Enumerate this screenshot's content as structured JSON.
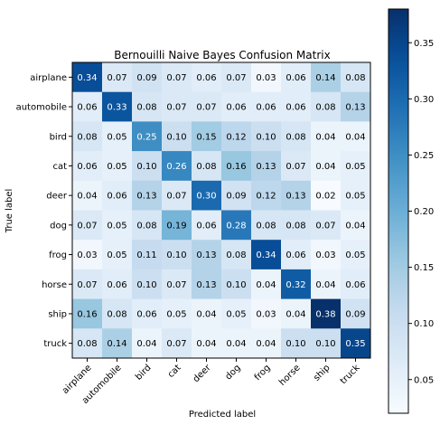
{
  "chart_data": {
    "type": "heatmap",
    "title": "Bernouilli Naive Bayes Confusion Matrix",
    "xlabel": "Predicted label",
    "ylabel": "True label",
    "x_categories": [
      "airplane",
      "automobile",
      "bird",
      "cat",
      "deer",
      "dog",
      "frog",
      "horse",
      "ship",
      "truck"
    ],
    "y_categories": [
      "airplane",
      "automobile",
      "bird",
      "cat",
      "deer",
      "dog",
      "frog",
      "horse",
      "ship",
      "truck"
    ],
    "values": [
      [
        0.34,
        0.07,
        0.09,
        0.07,
        0.06,
        0.07,
        0.03,
        0.06,
        0.14,
        0.08
      ],
      [
        0.06,
        0.33,
        0.08,
        0.07,
        0.07,
        0.06,
        0.06,
        0.06,
        0.08,
        0.13
      ],
      [
        0.08,
        0.05,
        0.25,
        0.1,
        0.15,
        0.12,
        0.1,
        0.08,
        0.04,
        0.04
      ],
      [
        0.06,
        0.05,
        0.1,
        0.26,
        0.08,
        0.16,
        0.13,
        0.07,
        0.04,
        0.05
      ],
      [
        0.04,
        0.06,
        0.13,
        0.07,
        0.3,
        0.09,
        0.12,
        0.13,
        0.02,
        0.05
      ],
      [
        0.07,
        0.05,
        0.08,
        0.19,
        0.06,
        0.28,
        0.08,
        0.08,
        0.07,
        0.04
      ],
      [
        0.03,
        0.05,
        0.11,
        0.1,
        0.13,
        0.08,
        0.34,
        0.06,
        0.03,
        0.05
      ],
      [
        0.07,
        0.06,
        0.1,
        0.07,
        0.13,
        0.1,
        0.04,
        0.32,
        0.04,
        0.06
      ],
      [
        0.16,
        0.08,
        0.06,
        0.05,
        0.04,
        0.05,
        0.03,
        0.04,
        0.38,
        0.09
      ],
      [
        0.08,
        0.14,
        0.04,
        0.07,
        0.04,
        0.04,
        0.04,
        0.1,
        0.1,
        0.35
      ]
    ],
    "colormap": "Blues",
    "color_range": [
      0.02,
      0.38
    ],
    "colorbar_ticks": [
      "0.05",
      "0.10",
      "0.15",
      "0.20",
      "0.25",
      "0.30",
      "0.35"
    ],
    "colorbar_tick_values": [
      0.05,
      0.1,
      0.15,
      0.2,
      0.25,
      0.3,
      0.35
    ],
    "text_color_light": "#ffffff",
    "text_color_dark": "#000000"
  }
}
